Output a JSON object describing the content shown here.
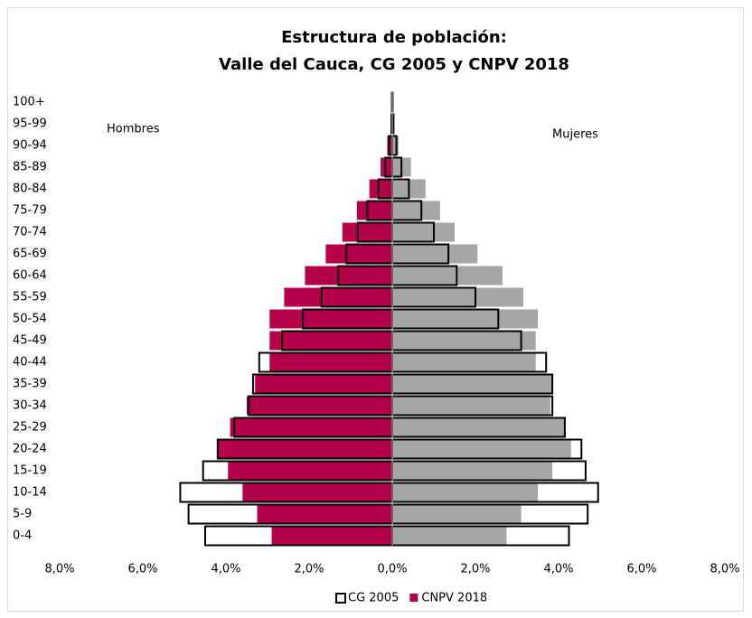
{
  "chart_data": {
    "type": "pyramid",
    "title": "Estructura de población:",
    "subtitle": "Valle del Cauca, CG 2005 y CNPV 2018",
    "left_label": "Hombres",
    "right_label": "Mujeres",
    "categories": [
      "0-4",
      "5-9",
      "10-14",
      "15-19",
      "20-24",
      "25-29",
      "30-34",
      "35-39",
      "40-44",
      "45-49",
      "50-54",
      "55-59",
      "60-64",
      "65-69",
      "70-74",
      "75-79",
      "80-84",
      "85-89",
      "90-94",
      "95-99",
      "100+"
    ],
    "series": [
      {
        "name": "CNPV 2018",
        "color": "#b5004a",
        "right_color": "#a6a6a6",
        "outline": false,
        "hombres": [
          2.9,
          3.25,
          3.6,
          3.95,
          4.2,
          3.9,
          3.5,
          3.3,
          2.95,
          2.95,
          2.95,
          2.6,
          2.1,
          1.6,
          1.2,
          0.85,
          0.55,
          0.28,
          0.12,
          0.03,
          0.01
        ],
        "mujeres": [
          2.75,
          3.1,
          3.5,
          3.85,
          4.3,
          4.15,
          3.8,
          3.85,
          3.45,
          3.45,
          3.5,
          3.15,
          2.65,
          2.05,
          1.5,
          1.15,
          0.8,
          0.45,
          0.15,
          0.04,
          0.01
        ]
      },
      {
        "name": "CG 2005",
        "color": "#000000",
        "right_color": "#000000",
        "outline": true,
        "hombres": [
          4.5,
          4.9,
          5.1,
          4.55,
          4.2,
          3.8,
          3.45,
          3.35,
          3.2,
          2.65,
          2.15,
          1.7,
          1.3,
          1.1,
          0.83,
          0.6,
          0.33,
          0.17,
          0.08,
          0.02,
          0.01
        ],
        "mujeres": [
          4.25,
          4.7,
          4.95,
          4.65,
          4.55,
          4.15,
          3.85,
          3.85,
          3.7,
          3.1,
          2.55,
          2.0,
          1.55,
          1.35,
          1.0,
          0.7,
          0.4,
          0.22,
          0.1,
          0.03,
          0.01
        ]
      }
    ],
    "legend_order": [
      1,
      0
    ],
    "xlim": [
      -8,
      8
    ],
    "xticks": [
      {
        "value": -8,
        "label": "8,0%"
      },
      {
        "value": -6,
        "label": "6,0%"
      },
      {
        "value": -4,
        "label": "4,0%"
      },
      {
        "value": -2,
        "label": "2,0%"
      },
      {
        "value": 0,
        "label": "0,0%"
      },
      {
        "value": 2,
        "label": "2,0%"
      },
      {
        "value": 4,
        "label": "4,0%"
      },
      {
        "value": 6,
        "label": "6,0%"
      },
      {
        "value": 8,
        "label": "8,0%"
      }
    ],
    "grid": false,
    "legend": "bottom"
  }
}
